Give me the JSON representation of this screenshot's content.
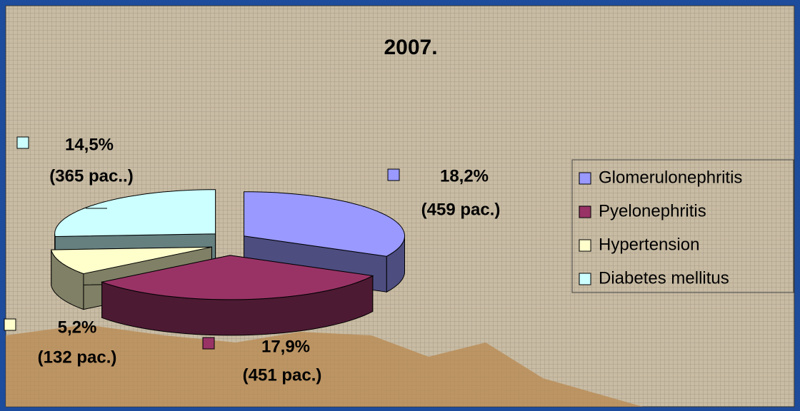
{
  "chart_data": {
    "type": "pie",
    "title": "2007.",
    "categories": [
      "Glomerulonephritis",
      "Pyelonephritis",
      "Hypertension",
      "Diabetes mellitus"
    ],
    "values": [
      18.2,
      17.9,
      5.2,
      14.5
    ],
    "value_labels": [
      "18,2%",
      "17,9%",
      "5,2%",
      "14,5%"
    ],
    "count_labels": [
      "(459 pac.)",
      "(451 pac.)",
      "(132 pac.)",
      "(365 pac..)"
    ],
    "colors": [
      "#9999ff",
      "#993366",
      "#ffffcc",
      "#ccffff"
    ],
    "legend": "right"
  }
}
